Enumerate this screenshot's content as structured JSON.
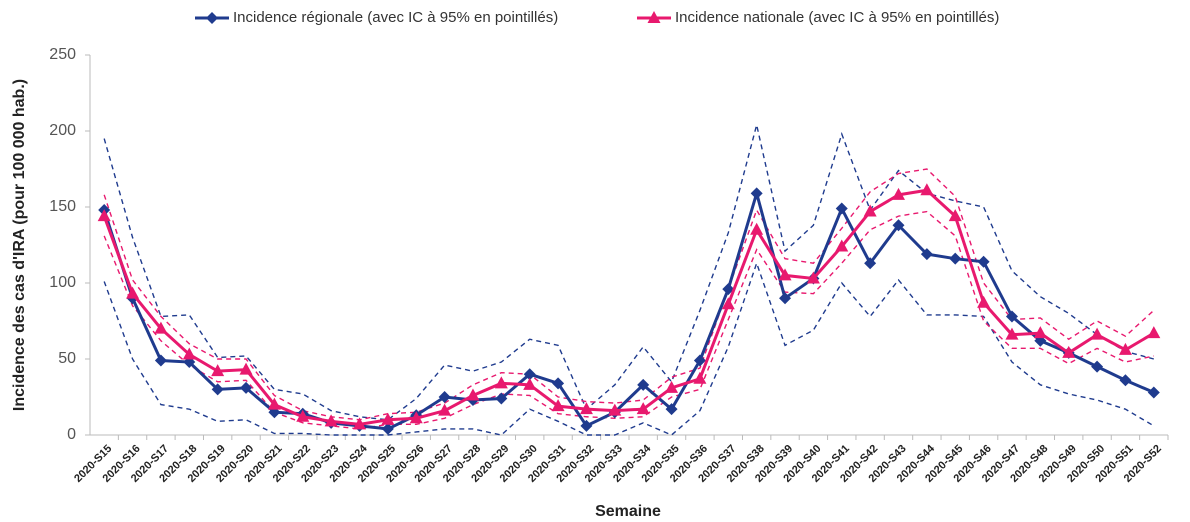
{
  "chart_data": {
    "type": "line",
    "categories": [
      "2020-S15",
      "2020-S16",
      "2020-S17",
      "2020-S18",
      "2020-S19",
      "2020-S20",
      "2020-S21",
      "2020-S22",
      "2020-S23",
      "2020-S24",
      "2020-S25",
      "2020-S26",
      "2020-S27",
      "2020-S28",
      "2020-S29",
      "2020-S30",
      "2020-S31",
      "2020-S32",
      "2020-S33",
      "2020-S34",
      "2020-S35",
      "2020-S36",
      "2020-S37",
      "2020-S38",
      "2020-S39",
      "2020-S40",
      "2020-S41",
      "2020-S42",
      "2020-S43",
      "2020-S44",
      "2020-S45",
      "2020-S46",
      "2020-S47",
      "2020-S48",
      "2020-S49",
      "2020-S50",
      "2020-S51",
      "2020-S52"
    ],
    "series": [
      {
        "name": "Incidence régionale (avec IC à 95% en pointillés)",
        "color": "#1f3b8e",
        "marker": "diamond",
        "values": [
          148,
          90,
          49,
          48,
          30,
          31,
          15,
          14,
          8,
          6,
          4,
          13,
          25,
          23,
          24,
          40,
          34,
          6,
          15,
          33,
          17,
          49,
          96,
          159,
          90,
          103,
          149,
          113,
          138,
          119,
          116,
          114,
          78,
          62,
          54,
          45,
          36,
          28
        ],
        "upper": [
          195,
          130,
          78,
          79,
          51,
          52,
          30,
          27,
          16,
          12,
          10,
          24,
          46,
          42,
          48,
          63,
          59,
          17,
          33,
          58,
          35,
          82,
          133,
          204,
          121,
          138,
          198,
          148,
          174,
          159,
          154,
          150,
          108,
          91,
          80,
          66,
          55,
          50
        ],
        "lower": [
          101,
          50,
          20,
          17,
          9,
          10,
          1,
          1,
          0,
          0,
          0,
          2,
          4,
          4,
          0,
          17,
          9,
          0,
          0,
          8,
          0,
          16,
          58,
          113,
          59,
          69,
          100,
          78,
          102,
          79,
          79,
          78,
          48,
          33,
          27,
          23,
          17,
          6
        ]
      },
      {
        "name": "Incidence nationale (avec IC à 95% en pointillés)",
        "color": "#e8196e",
        "marker": "triangle",
        "values": [
          144,
          93,
          70,
          53,
          42,
          43,
          20,
          12,
          9,
          7,
          10,
          11,
          16,
          26,
          34,
          33,
          19,
          17,
          16,
          17,
          31,
          37,
          86,
          135,
          105,
          103,
          124,
          147,
          158,
          161,
          144,
          87,
          66,
          67,
          54,
          66,
          56,
          67
        ],
        "upper": [
          158,
          102,
          78,
          60,
          50,
          50,
          26,
          16,
          12,
          10,
          14,
          15,
          21,
          33,
          41,
          40,
          25,
          22,
          21,
          23,
          38,
          44,
          96,
          148,
          116,
          113,
          136,
          160,
          172,
          175,
          157,
          100,
          76,
          77,
          63,
          75,
          65,
          82
        ],
        "lower": [
          131,
          85,
          62,
          46,
          35,
          36,
          15,
          8,
          6,
          4,
          7,
          7,
          11,
          20,
          27,
          26,
          14,
          12,
          11,
          12,
          25,
          30,
          76,
          122,
          94,
          93,
          113,
          135,
          144,
          147,
          131,
          75,
          57,
          57,
          47,
          57,
          48,
          52
        ]
      }
    ],
    "y_label": "Incidence des cas d'IRA (pour 100 000 hab.)",
    "x_label": "Semaine",
    "ylim": [
      0,
      250
    ],
    "yticks": [
      0,
      50,
      100,
      150,
      200,
      250
    ],
    "legend": "top"
  }
}
